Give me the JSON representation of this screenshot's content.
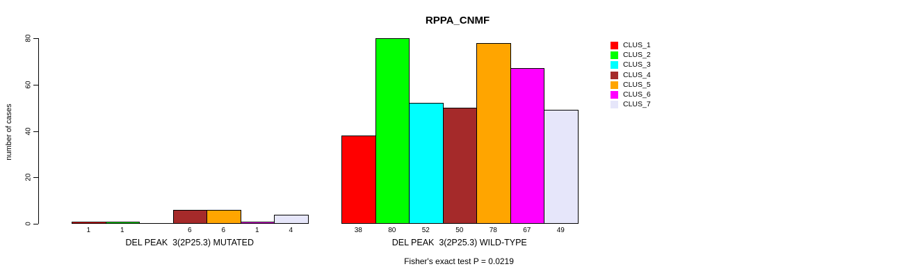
{
  "chart_data": {
    "type": "bar",
    "title": "RPPA_CNMF",
    "ylabel": "number of cases",
    "xlabel": "",
    "ylim": [
      0,
      80
    ],
    "yticks": [
      0,
      20,
      40,
      60,
      80
    ],
    "grid": false,
    "legend_position": "right-outside",
    "annotation": "Fisher's exact test P = 0.0219",
    "categories": [
      "DEL PEAK  3(2P25.3) MUTATED",
      "DEL PEAK  3(2P25.3) WILD-TYPE"
    ],
    "series": [
      {
        "name": "CLUS_1",
        "color": "#FF0000",
        "values": [
          1,
          38
        ]
      },
      {
        "name": "CLUS_2",
        "color": "#00FF00",
        "values": [
          1,
          80
        ]
      },
      {
        "name": "CLUS_3",
        "color": "#00FFFF",
        "values": [
          0,
          52
        ]
      },
      {
        "name": "CLUS_4",
        "color": "#A52A2A",
        "values": [
          6,
          50
        ]
      },
      {
        "name": "CLUS_5",
        "color": "#FFA500",
        "values": [
          6,
          78
        ]
      },
      {
        "name": "CLUS_6",
        "color": "#FF00FF",
        "values": [
          1,
          67
        ]
      },
      {
        "name": "CLUS_7",
        "color": "#E6E6FA",
        "values": [
          4,
          49
        ]
      }
    ],
    "value_labels": {
      "show": true,
      "hide_zero": true,
      "per_group": [
        [
          "1",
          "1",
          "",
          "6",
          "6",
          "1",
          "4"
        ],
        [
          "38",
          "80",
          "52",
          "50",
          "78",
          "67",
          "49"
        ]
      ]
    },
    "axis_color": "#000000",
    "bar_border_color": "#000000"
  }
}
